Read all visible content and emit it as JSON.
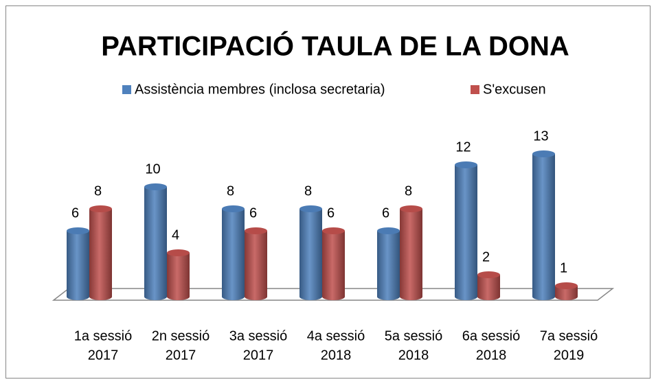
{
  "chart_data": {
    "type": "bar",
    "title": "PARTICIPACIÓ TAULA DE LA DONA",
    "categories": [
      [
        "1a sessió",
        "2017"
      ],
      [
        "2n sessió",
        "2017"
      ],
      [
        "3a sessió",
        "2017"
      ],
      [
        "4a sessió",
        "2018"
      ],
      [
        "5a sessió",
        "2018"
      ],
      [
        "6a sessió",
        "2018"
      ],
      [
        "7a sessió",
        "2019"
      ]
    ],
    "series": [
      {
        "name": "Assistència membres (inclosa secretaria)",
        "color": "#4f81bd",
        "values": [
          6,
          10,
          8,
          8,
          6,
          12,
          13
        ]
      },
      {
        "name": "S'excusen",
        "color": "#c0504d",
        "values": [
          8,
          4,
          6,
          6,
          8,
          2,
          1
        ]
      }
    ]
  }
}
